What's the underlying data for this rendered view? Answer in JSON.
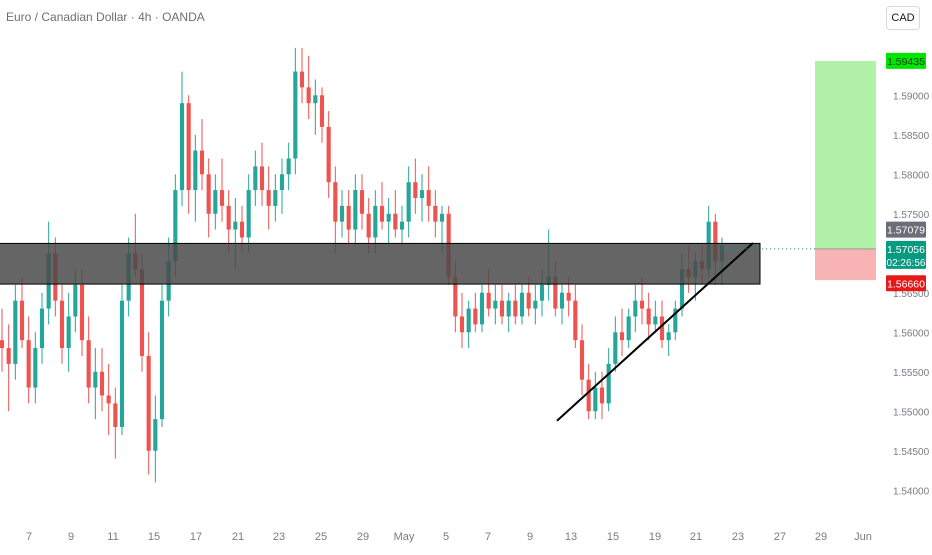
{
  "header": {
    "symbol_title": "Euro / Canadian Dollar · 4h · OANDA",
    "currency_button": "CAD"
  },
  "colors": {
    "up": "#26a69a",
    "down": "#ef5350",
    "zone_fill": "#4a4a4a",
    "target_fill": "#b2f2a8",
    "stop_fill": "#f8b4b4",
    "target_badge": "#00e600",
    "stop_badge": "#e61919",
    "last_price_badge": "#089981",
    "level_badge": "#6b6e78",
    "axis_text": "#787b86"
  },
  "chart_data": {
    "type": "candlestick",
    "title": "Euro / Canadian Dollar · 4h · OANDA",
    "price_axis": {
      "ticks": [
        "1.59000",
        "1.58500",
        "1.58000",
        "1.57500",
        "1.56500",
        "1.56000",
        "1.55500",
        "1.55000",
        "1.54500",
        "1.54000"
      ],
      "range": [
        1.5375,
        1.5985
      ]
    },
    "time_axis": {
      "ticks": [
        "7",
        "9",
        "11",
        "15",
        "17",
        "21",
        "23",
        "25",
        "29",
        "May",
        "5",
        "7",
        "9",
        "13",
        "15",
        "19",
        "21",
        "23",
        "27",
        "29",
        "Jun"
      ]
    },
    "price_labels": {
      "target": "1.59435",
      "level": "1.57079",
      "last_price": "1.57056",
      "countdown": "02:26:56",
      "stop": "1.56660"
    },
    "levels": {
      "target": 1.59435,
      "entry": 1.57056,
      "stop": 1.5666,
      "zone_top": 1.57125,
      "zone_bottom": 1.5661
    },
    "trendline": [
      [
        1.5488,
        0
      ],
      [
        1.5713,
        1
      ]
    ],
    "candles": [
      [
        1.559,
        1.563,
        1.555,
        1.558
      ],
      [
        1.558,
        1.561,
        1.55,
        1.556
      ],
      [
        1.556,
        1.566,
        1.554,
        1.564
      ],
      [
        1.564,
        1.567,
        1.558,
        1.559
      ],
      [
        1.559,
        1.562,
        1.551,
        1.553
      ],
      [
        1.553,
        1.56,
        1.551,
        1.558
      ],
      [
        1.558,
        1.565,
        1.556,
        1.563
      ],
      [
        1.563,
        1.574,
        1.561,
        1.57
      ],
      [
        1.57,
        1.572,
        1.562,
        1.564
      ],
      [
        1.564,
        1.566,
        1.556,
        1.558
      ],
      [
        1.558,
        1.565,
        1.555,
        1.562
      ],
      [
        1.562,
        1.568,
        1.56,
        1.566
      ],
      [
        1.566,
        1.568,
        1.557,
        1.559
      ],
      [
        1.559,
        1.562,
        1.551,
        1.553
      ],
      [
        1.553,
        1.558,
        1.549,
        1.555
      ],
      [
        1.555,
        1.558,
        1.55,
        1.552
      ],
      [
        1.552,
        1.556,
        1.547,
        1.551
      ],
      [
        1.551,
        1.553,
        1.544,
        1.548
      ],
      [
        1.548,
        1.566,
        1.547,
        1.564
      ],
      [
        1.564,
        1.572,
        1.562,
        1.57
      ],
      [
        1.57,
        1.575,
        1.567,
        1.568
      ],
      [
        1.568,
        1.57,
        1.555,
        1.557
      ],
      [
        1.557,
        1.56,
        1.542,
        1.545
      ],
      [
        1.545,
        1.552,
        1.541,
        1.549
      ],
      [
        1.549,
        1.566,
        1.548,
        1.564
      ],
      [
        1.564,
        1.572,
        1.562,
        1.569
      ],
      [
        1.569,
        1.58,
        1.567,
        1.578
      ],
      [
        1.578,
        1.593,
        1.576,
        1.589
      ],
      [
        1.589,
        1.59,
        1.575,
        1.578
      ],
      [
        1.578,
        1.585,
        1.574,
        1.583
      ],
      [
        1.583,
        1.587,
        1.578,
        1.58
      ],
      [
        1.58,
        1.582,
        1.572,
        1.575
      ],
      [
        1.575,
        1.58,
        1.573,
        1.578
      ],
      [
        1.578,
        1.582,
        1.574,
        1.576
      ],
      [
        1.576,
        1.578,
        1.57,
        1.573
      ],
      [
        1.573,
        1.577,
        1.568,
        1.574
      ],
      [
        1.574,
        1.576,
        1.57,
        1.572
      ],
      [
        1.572,
        1.58,
        1.57,
        1.578
      ],
      [
        1.578,
        1.583,
        1.576,
        1.581
      ],
      [
        1.581,
        1.584,
        1.576,
        1.578
      ],
      [
        1.578,
        1.581,
        1.573,
        1.576
      ],
      [
        1.576,
        1.58,
        1.574,
        1.578
      ],
      [
        1.578,
        1.582,
        1.575,
        1.58
      ],
      [
        1.58,
        1.584,
        1.578,
        1.582
      ],
      [
        1.582,
        1.596,
        1.58,
        1.593
      ],
      [
        1.593,
        1.596,
        1.589,
        1.591
      ],
      [
        1.591,
        1.595,
        1.587,
        1.589
      ],
      [
        1.589,
        1.592,
        1.585,
        1.59
      ],
      [
        1.59,
        1.591,
        1.584,
        1.586
      ],
      [
        1.586,
        1.588,
        1.577,
        1.579
      ],
      [
        1.579,
        1.581,
        1.57,
        1.574
      ],
      [
        1.574,
        1.578,
        1.572,
        1.576
      ],
      [
        1.576,
        1.578,
        1.571,
        1.573
      ],
      [
        1.573,
        1.58,
        1.571,
        1.578
      ],
      [
        1.578,
        1.58,
        1.573,
        1.575
      ],
      [
        1.575,
        1.577,
        1.57,
        1.572
      ],
      [
        1.572,
        1.578,
        1.57,
        1.576
      ],
      [
        1.576,
        1.579,
        1.573,
        1.574
      ],
      [
        1.574,
        1.577,
        1.571,
        1.575
      ],
      [
        1.575,
        1.578,
        1.572,
        1.573
      ],
      [
        1.573,
        1.576,
        1.571,
        1.574
      ],
      [
        1.574,
        1.581,
        1.572,
        1.579
      ],
      [
        1.579,
        1.582,
        1.575,
        1.577
      ],
      [
        1.577,
        1.58,
        1.574,
        1.578
      ],
      [
        1.578,
        1.581,
        1.574,
        1.576
      ],
      [
        1.576,
        1.578,
        1.572,
        1.574
      ],
      [
        1.574,
        1.576,
        1.57,
        1.575
      ],
      [
        1.575,
        1.576,
        1.566,
        1.567
      ],
      [
        1.567,
        1.569,
        1.56,
        1.562
      ],
      [
        1.562,
        1.565,
        1.558,
        1.56
      ],
      [
        1.56,
        1.564,
        1.558,
        1.563
      ],
      [
        1.563,
        1.565,
        1.56,
        1.561
      ],
      [
        1.561,
        1.566,
        1.56,
        1.565
      ],
      [
        1.565,
        1.568,
        1.562,
        1.563
      ],
      [
        1.563,
        1.566,
        1.561,
        1.564
      ],
      [
        1.564,
        1.566,
        1.561,
        1.562
      ],
      [
        1.562,
        1.565,
        1.56,
        1.564
      ],
      [
        1.564,
        1.566,
        1.561,
        1.562
      ],
      [
        1.562,
        1.566,
        1.561,
        1.565
      ],
      [
        1.565,
        1.567,
        1.562,
        1.563
      ],
      [
        1.563,
        1.566,
        1.561,
        1.564
      ],
      [
        1.564,
        1.568,
        1.562,
        1.566
      ],
      [
        1.566,
        1.573,
        1.564,
        1.567
      ],
      [
        1.567,
        1.569,
        1.562,
        1.563
      ],
      [
        1.563,
        1.566,
        1.561,
        1.565
      ],
      [
        1.565,
        1.567,
        1.562,
        1.564
      ],
      [
        1.564,
        1.566,
        1.558,
        1.559
      ],
      [
        1.559,
        1.561,
        1.552,
        1.554
      ],
      [
        1.554,
        1.556,
        1.549,
        1.55
      ],
      [
        1.55,
        1.555,
        1.549,
        1.553
      ],
      [
        1.553,
        1.555,
        1.549,
        1.551
      ],
      [
        1.551,
        1.558,
        1.55,
        1.556
      ],
      [
        1.556,
        1.562,
        1.555,
        1.56
      ],
      [
        1.56,
        1.563,
        1.557,
        1.559
      ],
      [
        1.559,
        1.563,
        1.558,
        1.562
      ],
      [
        1.562,
        1.566,
        1.56,
        1.564
      ],
      [
        1.564,
        1.567,
        1.561,
        1.563
      ],
      [
        1.563,
        1.565,
        1.559,
        1.561
      ],
      [
        1.561,
        1.564,
        1.56,
        1.562
      ],
      [
        1.562,
        1.564,
        1.558,
        1.559
      ],
      [
        1.559,
        1.561,
        1.557,
        1.56
      ],
      [
        1.56,
        1.564,
        1.559,
        1.563
      ],
      [
        1.563,
        1.57,
        1.562,
        1.568
      ],
      [
        1.568,
        1.571,
        1.565,
        1.567
      ],
      [
        1.567,
        1.57,
        1.564,
        1.569
      ],
      [
        1.569,
        1.571,
        1.566,
        1.568
      ],
      [
        1.568,
        1.576,
        1.567,
        1.574
      ],
      [
        1.574,
        1.575,
        1.566,
        1.569
      ],
      [
        1.569,
        1.572,
        1.566,
        1.571
      ]
    ]
  }
}
